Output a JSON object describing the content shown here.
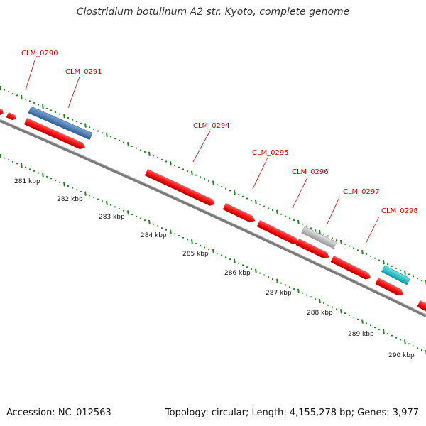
{
  "title": "Clostridium botulinum A2 str. Kyoto, complete genome",
  "footer": {
    "accession": "Accession: NC_012563",
    "summary": "Topology: circular; Length: 4,155,278 bp; Genes: 3,977"
  },
  "colors": {
    "gene_forward": "#ff1a1a",
    "gene_blue": "#4a7fb5",
    "gene_gray": "#c8c8c8",
    "gene_cyan": "#20c8d0",
    "label_red": "#cc0000",
    "tick_green": "#1a8a1a",
    "backbone": "#808080"
  },
  "gene_labels": [
    {
      "id": "g290",
      "text": "CLM_0290"
    },
    {
      "id": "g291",
      "text": "CLM_0291"
    },
    {
      "id": "g294",
      "text": "CLM_0294"
    },
    {
      "id": "g295",
      "text": "CLM_0295"
    },
    {
      "id": "g296",
      "text": "CLM_0296"
    },
    {
      "id": "g297",
      "text": "CLM_0297"
    },
    {
      "id": "g298",
      "text": "CLM_0298"
    }
  ],
  "kbp_labels": [
    "281 kbp",
    "282 kbp",
    "283 kbp",
    "284 kbp",
    "285 kbp",
    "286 kbp",
    "287 kbp",
    "288 kbp",
    "289 kbp",
    "290 kbp"
  ]
}
